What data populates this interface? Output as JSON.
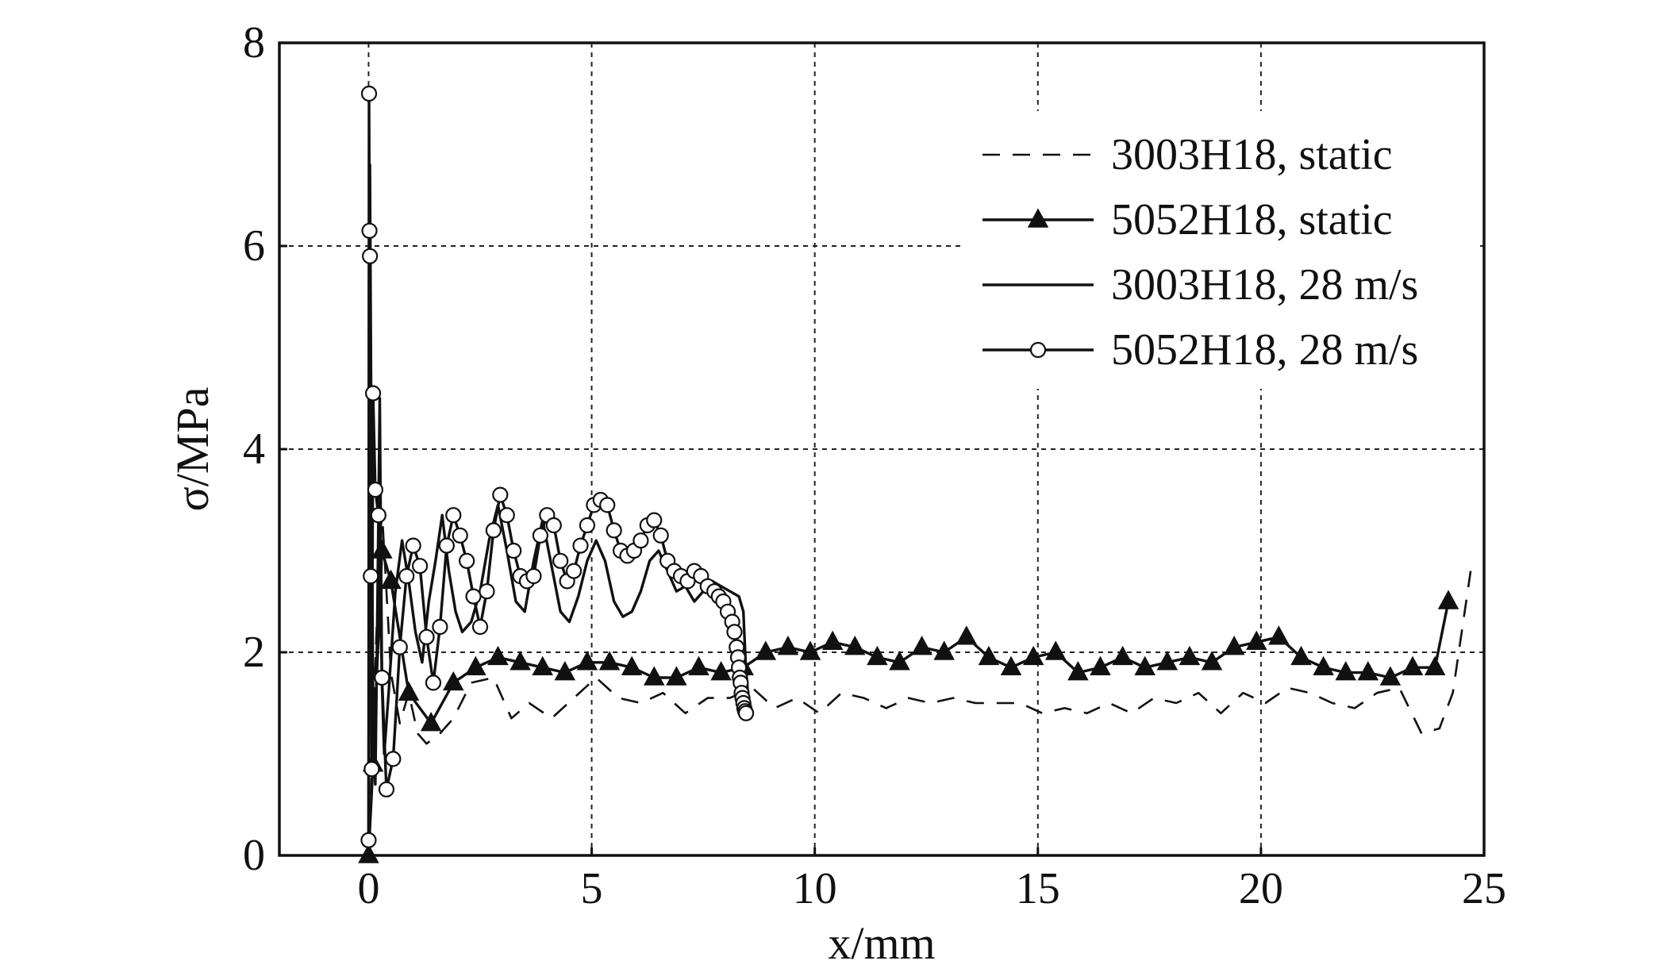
{
  "chart_data": {
    "type": "line",
    "xlabel": "x/mm",
    "ylabel": "σ/MPa",
    "xlim": [
      -2,
      25
    ],
    "ylim": [
      0,
      8
    ],
    "xticks": [
      0,
      5,
      10,
      15,
      20,
      25
    ],
    "yticks": [
      0,
      2,
      4,
      6,
      8
    ],
    "grid": true,
    "legend_position": "top-right",
    "series": [
      {
        "name": "3003H18, static",
        "line": "dashed",
        "marker": "none",
        "color": "#111111",
        "x": [
          0,
          0.1,
          0.2,
          0.3,
          0.5,
          0.7,
          0.9,
          1.1,
          1.3,
          1.6,
          1.9,
          2.3,
          2.8,
          3.2,
          3.6,
          4.1,
          4.6,
          5.1,
          5.6,
          6.1,
          6.6,
          7.1,
          7.6,
          8.1,
          8.6,
          9.1,
          9.6,
          10.1,
          10.6,
          11.1,
          11.6,
          12.1,
          12.6,
          13.1,
          13.6,
          14.1,
          14.6,
          15.1,
          15.6,
          16.1,
          16.6,
          17.1,
          17.6,
          18.1,
          18.6,
          19.1,
          19.6,
          20.1,
          20.6,
          21.1,
          21.6,
          22.1,
          22.6,
          23.1,
          23.6,
          24.0,
          24.3,
          24.7
        ],
        "y": [
          0,
          1.2,
          2.5,
          3.4,
          1.8,
          1.3,
          1.6,
          1.2,
          1.1,
          1.2,
          1.35,
          1.7,
          1.75,
          1.35,
          1.5,
          1.35,
          1.55,
          1.75,
          1.55,
          1.5,
          1.6,
          1.4,
          1.55,
          1.55,
          1.65,
          1.45,
          1.55,
          1.4,
          1.6,
          1.55,
          1.45,
          1.55,
          1.5,
          1.55,
          1.5,
          1.5,
          1.5,
          1.4,
          1.45,
          1.4,
          1.5,
          1.4,
          1.55,
          1.5,
          1.6,
          1.4,
          1.6,
          1.5,
          1.65,
          1.6,
          1.5,
          1.45,
          1.6,
          1.65,
          1.2,
          1.25,
          1.6,
          2.8
        ]
      },
      {
        "name": "5052H18, static",
        "line": "solid",
        "marker": "filled-triangle",
        "color": "#111111",
        "x": [
          0,
          0.1,
          0.3,
          0.5,
          0.9,
          1.4,
          1.9,
          2.4,
          2.9,
          3.4,
          3.9,
          4.4,
          4.9,
          5.4,
          5.9,
          6.4,
          6.9,
          7.4,
          7.9,
          8.4,
          8.9,
          9.4,
          9.9,
          10.4,
          10.9,
          11.4,
          11.9,
          12.4,
          12.9,
          13.4,
          13.9,
          14.4,
          14.9,
          15.4,
          15.9,
          16.4,
          16.9,
          17.4,
          17.9,
          18.4,
          18.9,
          19.4,
          19.9,
          20.4,
          20.9,
          21.4,
          21.9,
          22.4,
          22.9,
          23.4,
          23.9,
          24.2
        ],
        "y": [
          0,
          0.9,
          3.0,
          2.7,
          1.6,
          1.3,
          1.7,
          1.85,
          1.95,
          1.9,
          1.85,
          1.8,
          1.9,
          1.9,
          1.85,
          1.75,
          1.75,
          1.85,
          1.8,
          1.85,
          2.0,
          2.05,
          2.0,
          2.1,
          2.05,
          1.95,
          1.9,
          2.05,
          2.0,
          2.15,
          1.95,
          1.85,
          1.95,
          2.0,
          1.8,
          1.85,
          1.95,
          1.85,
          1.9,
          1.95,
          1.9,
          2.05,
          2.1,
          2.15,
          1.95,
          1.85,
          1.8,
          1.8,
          1.75,
          1.85,
          1.85,
          2.5
        ]
      },
      {
        "name": "3003H18, 28 m/s",
        "line": "solid",
        "marker": "none",
        "color": "#111111",
        "x": [
          0,
          0.03,
          0.06,
          0.1,
          0.15,
          0.2,
          0.25,
          0.3,
          0.35,
          0.45,
          0.6,
          0.75,
          0.9,
          1.05,
          1.2,
          1.35,
          1.5,
          1.65,
          1.8,
          1.95,
          2.1,
          2.3,
          2.5,
          2.7,
          2.9,
          3.1,
          3.3,
          3.5,
          3.7,
          3.9,
          4.1,
          4.3,
          4.5,
          4.7,
          4.9,
          5.1,
          5.3,
          5.5,
          5.7,
          5.9,
          6.1,
          6.3,
          6.5,
          6.7,
          6.9,
          7.1,
          7.3,
          7.5,
          7.7,
          7.9,
          8.1,
          8.3,
          8.4,
          8.45,
          8.5
        ],
        "y": [
          0,
          6.8,
          4.2,
          1.5,
          0.7,
          2.5,
          4.5,
          1.7,
          1.0,
          1.6,
          2.6,
          3.1,
          2.7,
          2.2,
          1.9,
          2.5,
          2.9,
          3.35,
          2.8,
          2.4,
          2.2,
          2.3,
          2.6,
          3.1,
          3.45,
          3.0,
          2.5,
          2.4,
          2.9,
          3.3,
          2.85,
          2.4,
          2.3,
          2.55,
          2.9,
          3.1,
          2.9,
          2.5,
          2.35,
          2.4,
          2.6,
          2.9,
          3.0,
          2.8,
          2.6,
          2.65,
          2.5,
          2.6,
          2.7,
          2.65,
          2.6,
          2.55,
          2.4,
          1.9,
          1.6
        ]
      },
      {
        "name": "5052H18, 28 m/s",
        "line": "solid",
        "marker": "open-circle",
        "color": "#111111",
        "x": [
          0,
          0.01,
          0.02,
          0.03,
          0.05,
          0.07,
          0.1,
          0.15,
          0.22,
          0.3,
          0.4,
          0.55,
          0.7,
          0.85,
          1.0,
          1.15,
          1.3,
          1.45,
          1.6,
          1.75,
          1.9,
          2.05,
          2.2,
          2.35,
          2.5,
          2.65,
          2.8,
          2.95,
          3.1,
          3.25,
          3.4,
          3.55,
          3.7,
          3.85,
          4.0,
          4.15,
          4.3,
          4.45,
          4.6,
          4.75,
          4.9,
          5.05,
          5.2,
          5.35,
          5.5,
          5.65,
          5.8,
          5.95,
          6.1,
          6.25,
          6.4,
          6.55,
          6.7,
          6.85,
          7.0,
          7.15,
          7.3,
          7.45,
          7.6,
          7.75,
          7.85,
          7.95,
          8.05,
          8.15,
          8.2,
          8.25,
          8.28,
          8.3,
          8.32,
          8.34,
          8.36,
          8.38,
          8.4,
          8.42,
          8.44,
          8.46
        ],
        "y": [
          0.15,
          7.5,
          6.15,
          5.9,
          2.75,
          0.85,
          4.55,
          3.6,
          3.35,
          1.75,
          0.65,
          0.95,
          2.05,
          2.75,
          3.05,
          2.85,
          2.15,
          1.7,
          2.25,
          3.05,
          3.35,
          3.15,
          2.9,
          2.55,
          2.25,
          2.6,
          3.2,
          3.55,
          3.35,
          3.0,
          2.75,
          2.7,
          2.75,
          3.15,
          3.35,
          3.25,
          2.9,
          2.7,
          2.8,
          3.05,
          3.25,
          3.45,
          3.5,
          3.45,
          3.2,
          3.0,
          2.95,
          3.0,
          3.1,
          3.25,
          3.3,
          3.15,
          2.9,
          2.8,
          2.75,
          2.7,
          2.8,
          2.75,
          2.65,
          2.6,
          2.55,
          2.5,
          2.4,
          2.3,
          2.2,
          2.05,
          1.95,
          1.85,
          1.75,
          1.7,
          1.6,
          1.55,
          1.5,
          1.45,
          1.42,
          1.4
        ]
      }
    ]
  }
}
